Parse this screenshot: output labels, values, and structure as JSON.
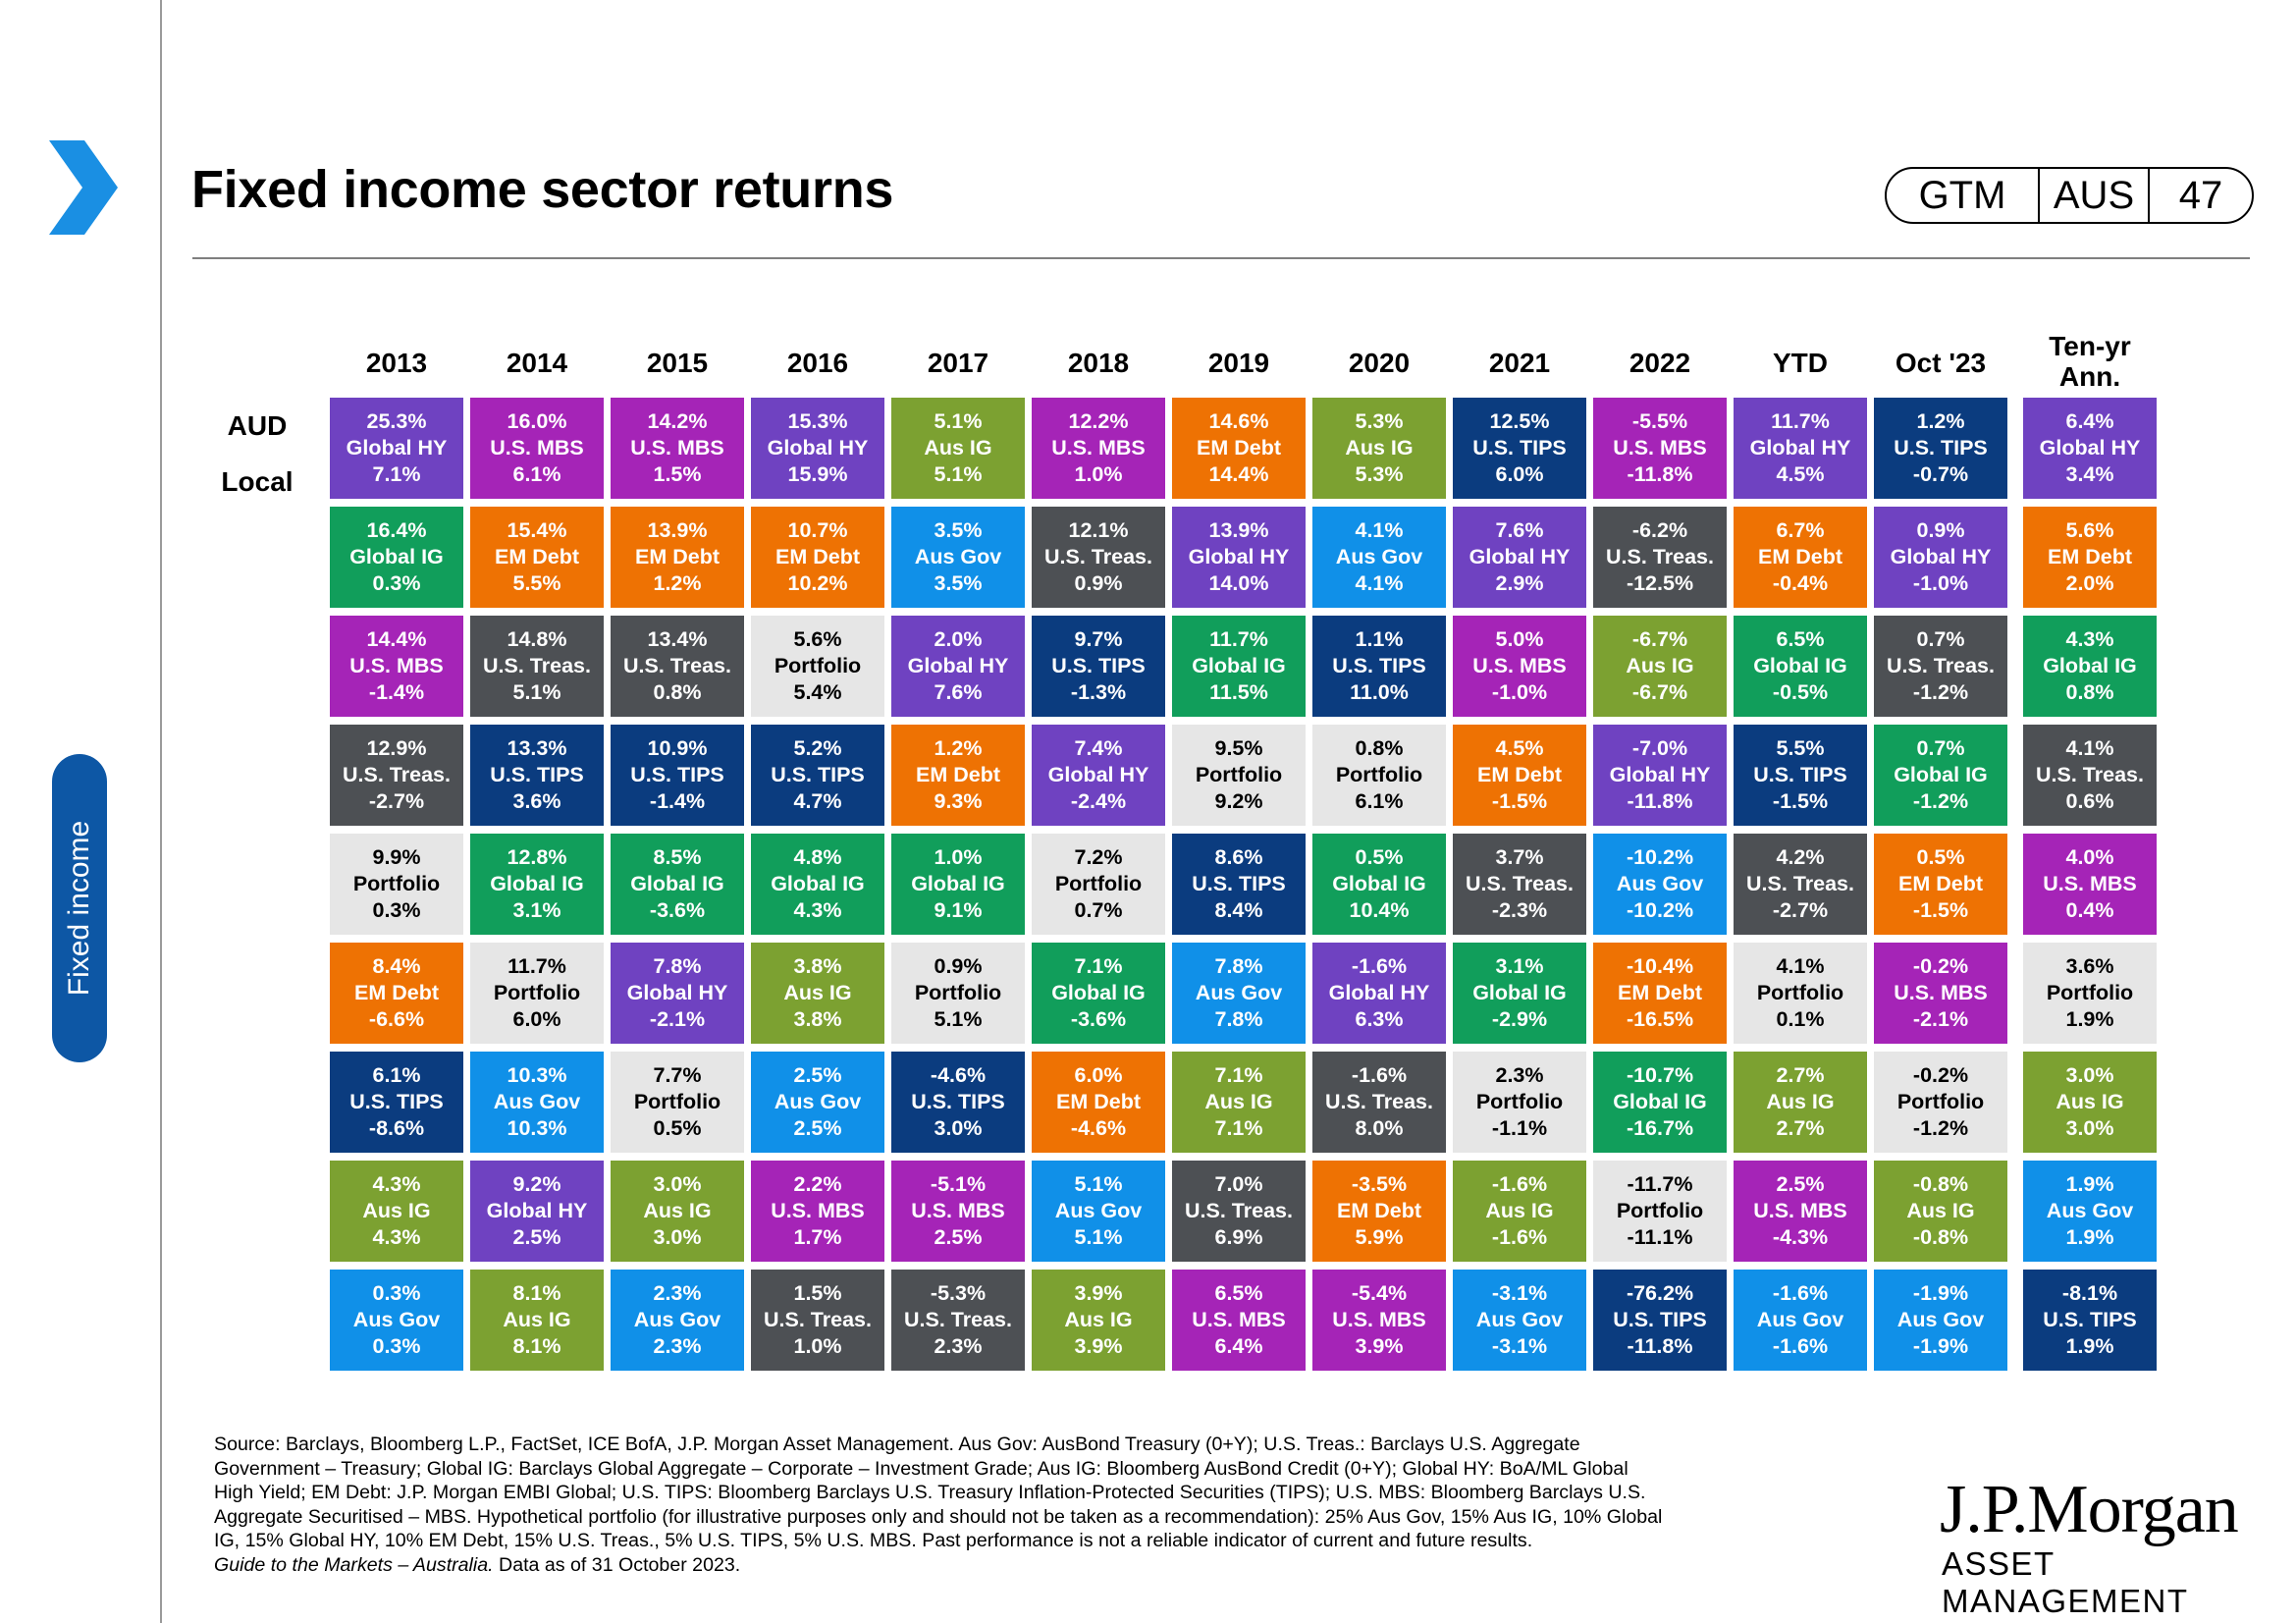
{
  "header": {
    "title": "Fixed income sector returns",
    "badge": {
      "section": "GTM",
      "region": "AUS",
      "page": "47"
    }
  },
  "sidebar": {
    "tab_label": "Fixed income"
  },
  "colors": {
    "Global HY": "#6f42c1",
    "U.S. MBS": "#a524b7",
    "Global IG": "#119e5b",
    "U.S. Treas.": "#4d5054",
    "Portfolio": "#e6e6e6",
    "EM Debt": "#ee7203",
    "U.S. TIPS": "#0b3c7f",
    "Aus IG": "#7ca131",
    "Aus Gov": "#1090e8"
  },
  "row_labels": [
    "AUD",
    "Local"
  ],
  "source": {
    "lines": [
      "Source: Barclays, Bloomberg L.P., FactSet, ICE BofA, J.P. Morgan Asset Management.  Aus Gov: AusBond Treasury (0+Y); U.S. Treas.: Barclays U.S. Aggregate",
      "Government – Treasury; Global IG: Barclays Global Aggregate – Corporate – Investment  Grade; Aus IG: Bloomberg AusBond Credit (0+Y); Global HY: BoA/ML Global",
      "High Yield; EM Debt: J.P. Morgan EMBI Global; U.S. TIPS: Bloomberg Barclays U.S. Treasury Inflation-Protected  Securities (TIPS); U.S. MBS: Bloomberg Barclays U.S.",
      "Aggregate  Securitised – MBS. Hypothetical portfolio (for illustrative  purposes only and should  not be taken  as a recommendation):  25% Aus Gov, 15% Aus IG, 10% Global",
      "IG, 15% Global HY, 10% EM Debt, 15% U.S. Treas., 5% U.S. TIPS, 5% U.S. MBS. Past performance  is not a reliable  indicator of current  and future results."
    ],
    "guide_italic": "Guide to the Markets – Australia.",
    "guide_rest": " Data as of 31 October 2023."
  },
  "logo": {
    "line1": "J.P.Morgan",
    "line2": "ASSET MANAGEMENT"
  },
  "chart_data": {
    "type": "table",
    "title": "Fixed income sector returns",
    "row_labels": [
      "AUD",
      "Local"
    ],
    "columns": [
      {
        "label": "2013",
        "cells": [
          {
            "sector": "Global HY",
            "aud": "25.3%",
            "local": "7.1%"
          },
          {
            "sector": "Global IG",
            "aud": "16.4%",
            "local": "0.3%"
          },
          {
            "sector": "U.S. MBS",
            "aud": "14.4%",
            "local": "-1.4%"
          },
          {
            "sector": "U.S. Treas.",
            "aud": "12.9%",
            "local": "-2.7%"
          },
          {
            "sector": "Portfolio",
            "aud": "9.9%",
            "local": "0.3%"
          },
          {
            "sector": "EM Debt",
            "aud": "8.4%",
            "local": "-6.6%"
          },
          {
            "sector": "U.S. TIPS",
            "aud": "6.1%",
            "local": "-8.6%"
          },
          {
            "sector": "Aus IG",
            "aud": "4.3%",
            "local": "4.3%"
          },
          {
            "sector": "Aus Gov",
            "aud": "0.3%",
            "local": "0.3%"
          }
        ]
      },
      {
        "label": "2014",
        "cells": [
          {
            "sector": "U.S. MBS",
            "aud": "16.0%",
            "local": "6.1%"
          },
          {
            "sector": "EM Debt",
            "aud": "15.4%",
            "local": "5.5%"
          },
          {
            "sector": "U.S. Treas.",
            "aud": "14.8%",
            "local": "5.1%"
          },
          {
            "sector": "U.S. TIPS",
            "aud": "13.3%",
            "local": "3.6%"
          },
          {
            "sector": "Global IG",
            "aud": "12.8%",
            "local": "3.1%"
          },
          {
            "sector": "Portfolio",
            "aud": "11.7%",
            "local": "6.0%"
          },
          {
            "sector": "Aus Gov",
            "aud": "10.3%",
            "local": "10.3%"
          },
          {
            "sector": "Global HY",
            "aud": "9.2%",
            "local": "2.5%"
          },
          {
            "sector": "Aus IG",
            "aud": "8.1%",
            "local": "8.1%"
          }
        ]
      },
      {
        "label": "2015",
        "cells": [
          {
            "sector": "U.S. MBS",
            "aud": "14.2%",
            "local": "1.5%"
          },
          {
            "sector": "EM Debt",
            "aud": "13.9%",
            "local": "1.2%"
          },
          {
            "sector": "U.S. Treas.",
            "aud": "13.4%",
            "local": "0.8%"
          },
          {
            "sector": "U.S. TIPS",
            "aud": "10.9%",
            "local": "-1.4%"
          },
          {
            "sector": "Global IG",
            "aud": "8.5%",
            "local": "-3.6%"
          },
          {
            "sector": "Global HY",
            "aud": "7.8%",
            "local": "-2.1%"
          },
          {
            "sector": "Portfolio",
            "aud": "7.7%",
            "local": "0.5%"
          },
          {
            "sector": "Aus IG",
            "aud": "3.0%",
            "local": "3.0%"
          },
          {
            "sector": "Aus Gov",
            "aud": "2.3%",
            "local": "2.3%"
          }
        ]
      },
      {
        "label": "2016",
        "cells": [
          {
            "sector": "Global HY",
            "aud": "15.3%",
            "local": "15.9%"
          },
          {
            "sector": "EM Debt",
            "aud": "10.7%",
            "local": "10.2%"
          },
          {
            "sector": "Portfolio",
            "aud": "5.6%",
            "local": "5.4%"
          },
          {
            "sector": "U.S. TIPS",
            "aud": "5.2%",
            "local": "4.7%"
          },
          {
            "sector": "Global IG",
            "aud": "4.8%",
            "local": "4.3%"
          },
          {
            "sector": "Aus IG",
            "aud": "3.8%",
            "local": "3.8%"
          },
          {
            "sector": "Aus Gov",
            "aud": "2.5%",
            "local": "2.5%"
          },
          {
            "sector": "U.S. MBS",
            "aud": "2.2%",
            "local": "1.7%"
          },
          {
            "sector": "U.S. Treas.",
            "aud": "1.5%",
            "local": "1.0%"
          }
        ]
      },
      {
        "label": "2017",
        "cells": [
          {
            "sector": "Aus IG",
            "aud": "5.1%",
            "local": "5.1%"
          },
          {
            "sector": "Aus Gov",
            "aud": "3.5%",
            "local": "3.5%"
          },
          {
            "sector": "Global HY",
            "aud": "2.0%",
            "local": "7.6%"
          },
          {
            "sector": "EM Debt",
            "aud": "1.2%",
            "local": "9.3%"
          },
          {
            "sector": "Global IG",
            "aud": "1.0%",
            "local": "9.1%"
          },
          {
            "sector": "Portfolio",
            "aud": "0.9%",
            "local": "5.1%"
          },
          {
            "sector": "U.S. TIPS",
            "aud": "-4.6%",
            "local": "3.0%"
          },
          {
            "sector": "U.S. MBS",
            "aud": "-5.1%",
            "local": "2.5%"
          },
          {
            "sector": "U.S. Treas.",
            "aud": "-5.3%",
            "local": "2.3%"
          }
        ]
      },
      {
        "label": "2018",
        "cells": [
          {
            "sector": "U.S. MBS",
            "aud": "12.2%",
            "local": "1.0%"
          },
          {
            "sector": "U.S. Treas.",
            "aud": "12.1%",
            "local": "0.9%"
          },
          {
            "sector": "U.S. TIPS",
            "aud": "9.7%",
            "local": "-1.3%"
          },
          {
            "sector": "Global HY",
            "aud": "7.4%",
            "local": "-2.4%"
          },
          {
            "sector": "Portfolio",
            "aud": "7.2%",
            "local": "0.7%"
          },
          {
            "sector": "Global IG",
            "aud": "7.1%",
            "local": "-3.6%"
          },
          {
            "sector": "EM Debt",
            "aud": "6.0%",
            "local": "-4.6%"
          },
          {
            "sector": "Aus Gov",
            "aud": "5.1%",
            "local": "5.1%"
          },
          {
            "sector": "Aus IG",
            "aud": "3.9%",
            "local": "3.9%"
          }
        ]
      },
      {
        "label": "2019",
        "cells": [
          {
            "sector": "EM Debt",
            "aud": "14.6%",
            "local": "14.4%"
          },
          {
            "sector": "Global HY",
            "aud": "13.9%",
            "local": "14.0%"
          },
          {
            "sector": "Global IG",
            "aud": "11.7%",
            "local": "11.5%"
          },
          {
            "sector": "Portfolio",
            "aud": "9.5%",
            "local": "9.2%"
          },
          {
            "sector": "U.S. TIPS",
            "aud": "8.6%",
            "local": "8.4%"
          },
          {
            "sector": "Aus Gov",
            "aud": "7.8%",
            "local": "7.8%"
          },
          {
            "sector": "Aus IG",
            "aud": "7.1%",
            "local": "7.1%"
          },
          {
            "sector": "U.S. Treas.",
            "aud": "7.0%",
            "local": "6.9%"
          },
          {
            "sector": "U.S. MBS",
            "aud": "6.5%",
            "local": "6.4%"
          }
        ]
      },
      {
        "label": "2020",
        "cells": [
          {
            "sector": "Aus IG",
            "aud": "5.3%",
            "local": "5.3%"
          },
          {
            "sector": "Aus Gov",
            "aud": "4.1%",
            "local": "4.1%"
          },
          {
            "sector": "U.S. TIPS",
            "aud": "1.1%",
            "local": "11.0%"
          },
          {
            "sector": "Portfolio",
            "aud": "0.8%",
            "local": "6.1%"
          },
          {
            "sector": "Global IG",
            "aud": "0.5%",
            "local": "10.4%"
          },
          {
            "sector": "Global HY",
            "aud": "-1.6%",
            "local": "6.3%"
          },
          {
            "sector": "U.S. Treas.",
            "aud": "-1.6%",
            "local": "8.0%"
          },
          {
            "sector": "EM Debt",
            "aud": "-3.5%",
            "local": "5.9%"
          },
          {
            "sector": "U.S. MBS",
            "aud": "-5.4%",
            "local": "3.9%"
          }
        ]
      },
      {
        "label": "2021",
        "cells": [
          {
            "sector": "U.S. TIPS",
            "aud": "12.5%",
            "local": "6.0%"
          },
          {
            "sector": "Global HY",
            "aud": "7.6%",
            "local": "2.9%"
          },
          {
            "sector": "U.S. MBS",
            "aud": "5.0%",
            "local": "-1.0%"
          },
          {
            "sector": "EM Debt",
            "aud": "4.5%",
            "local": "-1.5%"
          },
          {
            "sector": "U.S. Treas.",
            "aud": "3.7%",
            "local": "-2.3%"
          },
          {
            "sector": "Global IG",
            "aud": "3.1%",
            "local": "-2.9%"
          },
          {
            "sector": "Portfolio",
            "aud": "2.3%",
            "local": "-1.1%"
          },
          {
            "sector": "Aus IG",
            "aud": "-1.6%",
            "local": "-1.6%"
          },
          {
            "sector": "Aus Gov",
            "aud": "-3.1%",
            "local": "-3.1%"
          }
        ]
      },
      {
        "label": "2022",
        "cells": [
          {
            "sector": "U.S. MBS",
            "aud": "-5.5%",
            "local": "-11.8%"
          },
          {
            "sector": "U.S. Treas.",
            "aud": "-6.2%",
            "local": "-12.5%"
          },
          {
            "sector": "Aus IG",
            "aud": "-6.7%",
            "local": "-6.7%"
          },
          {
            "sector": "Global HY",
            "aud": "-7.0%",
            "local": "-11.8%"
          },
          {
            "sector": "Aus Gov",
            "aud": "-10.2%",
            "local": "-10.2%"
          },
          {
            "sector": "EM Debt",
            "aud": "-10.4%",
            "local": "-16.5%"
          },
          {
            "sector": "Global IG",
            "aud": "-10.7%",
            "local": "-16.7%"
          },
          {
            "sector": "Portfolio",
            "aud": "-11.7%",
            "local": "-11.1%"
          },
          {
            "sector": "U.S. TIPS",
            "aud": "-76.2%",
            "local": "-11.8%"
          }
        ]
      },
      {
        "label": "YTD",
        "cells": [
          {
            "sector": "Global HY",
            "aud": "11.7%",
            "local": "4.5%"
          },
          {
            "sector": "EM Debt",
            "aud": "6.7%",
            "local": "-0.4%"
          },
          {
            "sector": "Global IG",
            "aud": "6.5%",
            "local": "-0.5%"
          },
          {
            "sector": "U.S. TIPS",
            "aud": "5.5%",
            "local": "-1.5%"
          },
          {
            "sector": "U.S. Treas.",
            "aud": "4.2%",
            "local": "-2.7%"
          },
          {
            "sector": "Portfolio",
            "aud": "4.1%",
            "local": "0.1%"
          },
          {
            "sector": "Aus IG",
            "aud": "2.7%",
            "local": "2.7%"
          },
          {
            "sector": "U.S. MBS",
            "aud": "2.5%",
            "local": "-4.3%"
          },
          {
            "sector": "Aus Gov",
            "aud": "-1.6%",
            "local": "-1.6%"
          }
        ]
      },
      {
        "label": "Oct '23",
        "cells": [
          {
            "sector": "U.S. TIPS",
            "aud": "1.2%",
            "local": "-0.7%"
          },
          {
            "sector": "Global HY",
            "aud": "0.9%",
            "local": "-1.0%"
          },
          {
            "sector": "U.S. Treas.",
            "aud": "0.7%",
            "local": "-1.2%"
          },
          {
            "sector": "Global IG",
            "aud": "0.7%",
            "local": "-1.2%"
          },
          {
            "sector": "EM Debt",
            "aud": "0.5%",
            "local": "-1.5%"
          },
          {
            "sector": "U.S. MBS",
            "aud": "-0.2%",
            "local": "-2.1%"
          },
          {
            "sector": "Portfolio",
            "aud": "-0.2%",
            "local": "-1.2%"
          },
          {
            "sector": "Aus IG",
            "aud": "-0.8%",
            "local": "-0.8%"
          },
          {
            "sector": "Aus Gov",
            "aud": "-1.9%",
            "local": "-1.9%"
          }
        ]
      },
      {
        "label": "Ten-yr Ann.",
        "label_lines": [
          "Ten-yr",
          "Ann."
        ],
        "cells": [
          {
            "sector": "Global HY",
            "aud": "6.4%",
            "local": "3.4%"
          },
          {
            "sector": "EM Debt",
            "aud": "5.6%",
            "local": "2.0%"
          },
          {
            "sector": "Global IG",
            "aud": "4.3%",
            "local": "0.8%"
          },
          {
            "sector": "U.S. Treas.",
            "aud": "4.1%",
            "local": "0.6%"
          },
          {
            "sector": "U.S. MBS",
            "aud": "4.0%",
            "local": "0.4%"
          },
          {
            "sector": "Portfolio",
            "aud": "3.6%",
            "local": "1.9%"
          },
          {
            "sector": "Aus IG",
            "aud": "3.0%",
            "local": "3.0%"
          },
          {
            "sector": "Aus Gov",
            "aud": "1.9%",
            "local": "1.9%"
          },
          {
            "sector": "U.S. TIPS",
            "aud": "-8.1%",
            "local": "1.9%"
          }
        ]
      }
    ]
  }
}
